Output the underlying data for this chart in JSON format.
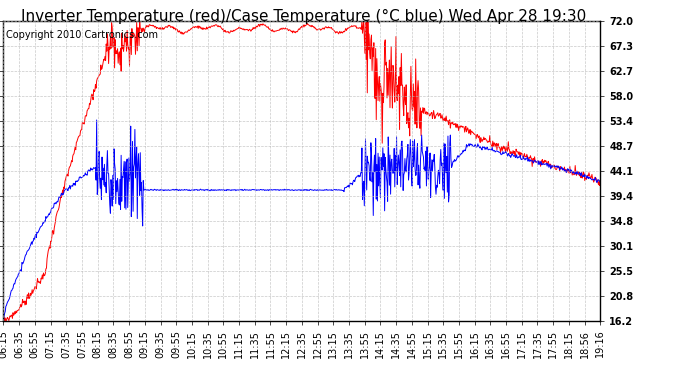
{
  "title": "Inverter Temperature (red)/Case Temperature (°C blue) Wed Apr 28 19:30",
  "copyright": "Copyright 2010 Cartronics.com",
  "yticks": [
    16.2,
    20.8,
    25.5,
    30.1,
    34.8,
    39.4,
    44.1,
    48.7,
    53.4,
    58.0,
    62.7,
    67.3,
    72.0
  ],
  "ylim": [
    16.2,
    72.0
  ],
  "xtick_labels": [
    "06:15",
    "06:35",
    "06:55",
    "07:15",
    "07:35",
    "07:55",
    "08:15",
    "08:35",
    "08:55",
    "09:15",
    "09:35",
    "09:55",
    "10:15",
    "10:35",
    "10:55",
    "11:15",
    "11:35",
    "11:55",
    "12:15",
    "12:35",
    "12:55",
    "13:15",
    "13:35",
    "13:55",
    "14:15",
    "14:35",
    "14:55",
    "15:15",
    "15:35",
    "15:55",
    "16:15",
    "16:35",
    "16:55",
    "17:15",
    "17:35",
    "17:55",
    "18:15",
    "18:56",
    "19:16"
  ],
  "bg_color": "#ffffff",
  "plot_bg_color": "#ffffff",
  "grid_color": "#bbbbbb",
  "red_color": "#ff0000",
  "blue_color": "#0000ff",
  "title_fontsize": 11,
  "copyright_fontsize": 7,
  "tick_fontsize": 7,
  "line_width": 0.7
}
